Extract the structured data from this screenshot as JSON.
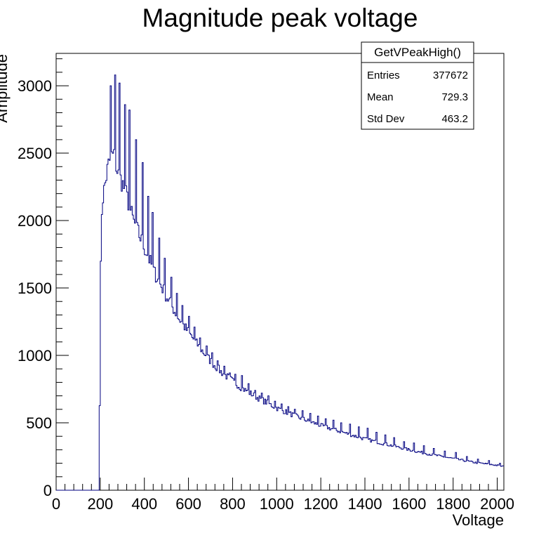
{
  "chart_data": {
    "type": "histogram",
    "title": "Magnitude peak voltage",
    "xlabel": "Voltage",
    "ylabel": "Amplitude",
    "xlim": [
      0,
      2030
    ],
    "ylim": [
      0,
      3240
    ],
    "x_ticks": [
      0,
      200,
      400,
      600,
      800,
      1000,
      1200,
      1400,
      1600,
      1800,
      2000
    ],
    "y_ticks": [
      0,
      500,
      1000,
      1500,
      2000,
      2500,
      3000
    ],
    "line_color": "#000080",
    "grid": false,
    "stats_box": {
      "title": "GetVPeakHigh()",
      "rows": [
        {
          "label": "Entries",
          "value": "377672"
        },
        {
          "label": "Mean",
          "value": "729.3"
        },
        {
          "label": "Std Dev",
          "value": "463.2"
        }
      ]
    },
    "bin_width": 5,
    "envelope": [
      [
        195,
        0
      ],
      [
        200,
        1300
      ],
      [
        205,
        2000
      ],
      [
        210,
        2150
      ],
      [
        220,
        2250
      ],
      [
        235,
        2400
      ],
      [
        250,
        2480
      ],
      [
        265,
        2470
      ],
      [
        280,
        2350
      ],
      [
        300,
        2280
      ],
      [
        320,
        2180
      ],
      [
        350,
        2000
      ],
      [
        400,
        1800
      ],
      [
        450,
        1600
      ],
      [
        500,
        1440
      ],
      [
        550,
        1290
      ],
      [
        600,
        1170
      ],
      [
        650,
        1060
      ],
      [
        700,
        960
      ],
      [
        750,
        875
      ],
      [
        800,
        810
      ],
      [
        850,
        750
      ],
      [
        900,
        700
      ],
      [
        950,
        655
      ],
      [
        1000,
        610
      ],
      [
        1100,
        540
      ],
      [
        1200,
        480
      ],
      [
        1300,
        430
      ],
      [
        1400,
        380
      ],
      [
        1500,
        340
      ],
      [
        1600,
        300
      ],
      [
        1700,
        265
      ],
      [
        1800,
        235
      ],
      [
        1900,
        205
      ],
      [
        2000,
        185
      ],
      [
        2030,
        175
      ]
    ],
    "spikes": [
      [
        245,
        3000
      ],
      [
        265,
        3080
      ],
      [
        285,
        3020
      ],
      [
        310,
        2860
      ],
      [
        330,
        2820
      ],
      [
        360,
        2600
      ],
      [
        390,
        2430
      ],
      [
        415,
        2180
      ],
      [
        435,
        2060
      ],
      [
        465,
        1870
      ],
      [
        490,
        1720
      ],
      [
        520,
        1580
      ],
      [
        545,
        1460
      ],
      [
        570,
        1370
      ],
      [
        600,
        1290
      ],
      [
        625,
        1210
      ],
      [
        650,
        1130
      ],
      [
        680,
        1070
      ],
      [
        705,
        1020
      ],
      [
        730,
        960
      ],
      [
        760,
        920
      ],
      [
        785,
        870
      ],
      [
        810,
        860
      ],
      [
        840,
        850
      ],
      [
        870,
        790
      ],
      [
        900,
        740
      ],
      [
        930,
        720
      ],
      [
        960,
        700
      ],
      [
        990,
        660
      ],
      [
        1020,
        640
      ],
      [
        1050,
        620
      ],
      [
        1080,
        600
      ],
      [
        1115,
        590
      ],
      [
        1150,
        570
      ],
      [
        1185,
        550
      ],
      [
        1220,
        530
      ],
      [
        1255,
        520
      ],
      [
        1290,
        500
      ],
      [
        1330,
        490
      ],
      [
        1370,
        470
      ],
      [
        1410,
        460
      ],
      [
        1450,
        430
      ],
      [
        1490,
        410
      ],
      [
        1530,
        390
      ],
      [
        1575,
        360
      ],
      [
        1620,
        350
      ],
      [
        1665,
        330
      ],
      [
        1710,
        310
      ],
      [
        1760,
        290
      ],
      [
        1810,
        280
      ],
      [
        1860,
        250
      ],
      [
        1910,
        230
      ],
      [
        1960,
        220
      ],
      [
        2010,
        200
      ]
    ]
  }
}
